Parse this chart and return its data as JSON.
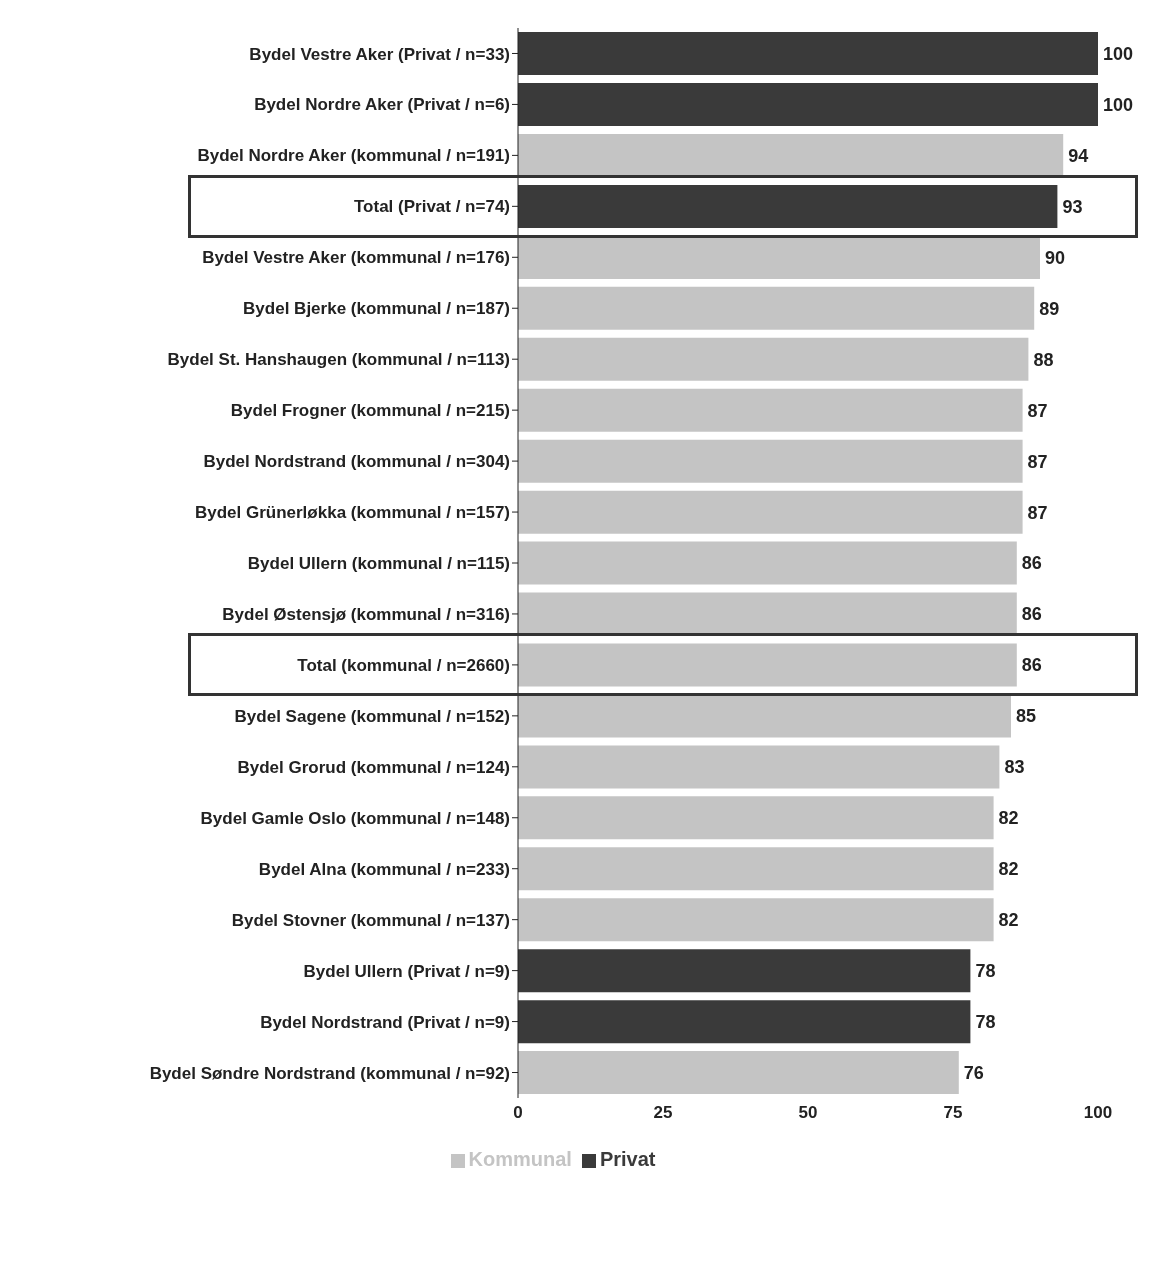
{
  "chart_data": {
    "type": "bar",
    "orientation": "horizontal",
    "stacked": true,
    "categories": [
      "Bydel Vestre Aker (Privat / n=33)",
      "Bydel Nordre Aker (Privat / n=6)",
      "Bydel Nordre Aker (kommunal / n=191)",
      "Total (Privat / n=74)",
      "Bydel Vestre Aker (kommunal / n=176)",
      "Bydel Bjerke (kommunal / n=187)",
      "Bydel St. Hanshaugen (kommunal / n=113)",
      "Bydel Frogner (kommunal / n=215)",
      "Bydel Nordstrand (kommunal / n=304)",
      "Bydel Grünerløkka (kommunal / n=157)",
      "Bydel Ullern (kommunal / n=115)",
      "Bydel Østensjø (kommunal / n=316)",
      "Total (kommunal / n=2660)",
      "Bydel Sagene (kommunal / n=152)",
      "Bydel Grorud (kommunal / n=124)",
      "Bydel Gamle Oslo (kommunal / n=148)",
      "Bydel Alna (kommunal / n=233)",
      "Bydel Stovner (kommunal / n=137)",
      "Bydel Ullern (Privat / n=9)",
      "Bydel Nordstrand (Privat / n=9)",
      "Bydel Søndre Nordstrand (kommunal / n=92)"
    ],
    "series": [
      {
        "name": "Privat",
        "color": "#3a3a3a",
        "values": [
          100,
          100,
          null,
          93,
          null,
          null,
          null,
          null,
          null,
          null,
          null,
          null,
          null,
          null,
          null,
          null,
          null,
          null,
          78,
          78,
          null
        ]
      },
      {
        "name": "Kommunal",
        "color": "#c4c4c4",
        "values": [
          null,
          null,
          94,
          null,
          90,
          89,
          88,
          87,
          87,
          87,
          86,
          86,
          86,
          85,
          83,
          82,
          82,
          82,
          null,
          null,
          76
        ]
      }
    ],
    "xlim": [
      0,
      100
    ],
    "xticks": [
      0,
      25,
      50,
      75,
      100
    ],
    "grid": false,
    "legend": "bottom",
    "data_labels": true
  }
}
